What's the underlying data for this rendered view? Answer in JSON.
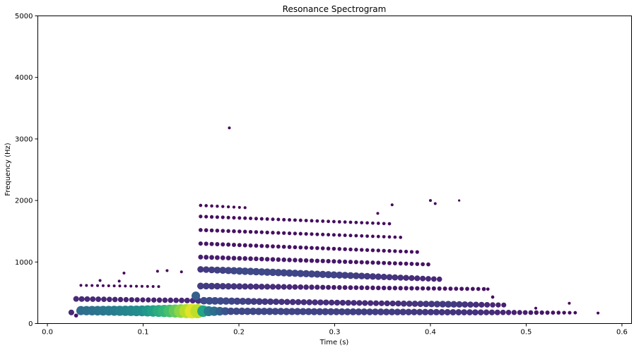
{
  "chart_data": {
    "type": "scatter",
    "title": "Resonance Spectrogram",
    "xlabel": "Time (s)",
    "ylabel": "Frequency (Hz)",
    "xlim": [
      -0.01,
      0.61
    ],
    "ylim": [
      0,
      5000
    ],
    "xticks": [
      0.0,
      0.1,
      0.2,
      0.3,
      0.4,
      0.5,
      0.6
    ],
    "xtick_labels": [
      "0.0",
      "0.1",
      "0.2",
      "0.3",
      "0.4",
      "0.5",
      "0.6"
    ],
    "yticks": [
      0,
      1000,
      2000,
      3000,
      4000,
      5000
    ],
    "ytick_labels": [
      "0",
      "1000",
      "2000",
      "3000",
      "4000",
      "5000"
    ],
    "grid": false,
    "colormap": "viridis",
    "note_encoding": "marker size and color both encode amplitude (0..1)",
    "tracks": [
      {
        "t_start": 0.035,
        "t_end": 0.555,
        "f_start": 210,
        "f_end": 175,
        "amp_keys": [
          [
            0.035,
            0.35
          ],
          [
            0.06,
            0.4
          ],
          [
            0.1,
            0.5
          ],
          [
            0.13,
            0.72
          ],
          [
            0.155,
            1.0
          ],
          [
            0.165,
            0.45
          ],
          [
            0.19,
            0.22
          ],
          [
            0.35,
            0.18
          ],
          [
            0.45,
            0.14
          ],
          [
            0.5,
            0.08
          ],
          [
            0.555,
            0.03
          ]
        ]
      },
      {
        "t_start": 0.03,
        "t_end": 0.48,
        "f_start": 400,
        "f_end": 300,
        "amp_keys": [
          [
            0.03,
            0.12
          ],
          [
            0.1,
            0.09
          ],
          [
            0.155,
            0.12
          ],
          [
            0.165,
            0.24
          ],
          [
            0.25,
            0.14
          ],
          [
            0.35,
            0.12
          ],
          [
            0.42,
            0.18
          ],
          [
            0.48,
            0.08
          ]
        ]
      },
      {
        "t_start": 0.16,
        "t_end": 0.46,
        "f_start": 610,
        "f_end": 560,
        "amp_keys": [
          [
            0.16,
            0.18
          ],
          [
            0.3,
            0.08
          ],
          [
            0.46,
            0.05
          ]
        ]
      },
      {
        "t_start": 0.16,
        "t_end": 0.41,
        "f_start": 880,
        "f_end": 720,
        "amp_keys": [
          [
            0.16,
            0.16
          ],
          [
            0.2,
            0.22
          ],
          [
            0.3,
            0.2
          ],
          [
            0.41,
            0.1
          ]
        ]
      },
      {
        "t_start": 0.16,
        "t_end": 0.4,
        "f_start": 1080,
        "f_end": 960,
        "amp_keys": [
          [
            0.16,
            0.08
          ],
          [
            0.4,
            0.05
          ]
        ]
      },
      {
        "t_start": 0.16,
        "t_end": 0.39,
        "f_start": 1300,
        "f_end": 1160,
        "amp_keys": [
          [
            0.16,
            0.06
          ],
          [
            0.39,
            0.04
          ]
        ]
      },
      {
        "t_start": 0.16,
        "t_end": 0.37,
        "f_start": 1520,
        "f_end": 1400,
        "amp_keys": [
          [
            0.16,
            0.05
          ],
          [
            0.37,
            0.03
          ]
        ]
      },
      {
        "t_start": 0.16,
        "t_end": 0.36,
        "f_start": 1740,
        "f_end": 1620,
        "amp_keys": [
          [
            0.16,
            0.04
          ],
          [
            0.36,
            0.03
          ]
        ]
      },
      {
        "t_start": 0.16,
        "t_end": 0.21,
        "f_start": 1920,
        "f_end": 1880,
        "amp_keys": [
          [
            0.16,
            0.03
          ],
          [
            0.21,
            0.02
          ]
        ]
      },
      {
        "t_start": 0.035,
        "t_end": 0.12,
        "f_start": 620,
        "f_end": 600,
        "amp_keys": [
          [
            0.035,
            0.02
          ],
          [
            0.12,
            0.02
          ]
        ]
      }
    ],
    "scattered_points": [
      {
        "t": 0.19,
        "f": 3180,
        "amp": 0.02
      },
      {
        "t": 0.4,
        "f": 2000,
        "amp": 0.02
      },
      {
        "t": 0.405,
        "f": 1950,
        "amp": 0.02
      },
      {
        "t": 0.43,
        "f": 2000,
        "amp": 0.01
      },
      {
        "t": 0.36,
        "f": 1930,
        "amp": 0.02
      },
      {
        "t": 0.345,
        "f": 1790,
        "amp": 0.02
      },
      {
        "t": 0.08,
        "f": 820,
        "amp": 0.02
      },
      {
        "t": 0.115,
        "f": 850,
        "amp": 0.02
      },
      {
        "t": 0.125,
        "f": 860,
        "amp": 0.02
      },
      {
        "t": 0.14,
        "f": 840,
        "amp": 0.02
      },
      {
        "t": 0.055,
        "f": 700,
        "amp": 0.02
      },
      {
        "t": 0.075,
        "f": 690,
        "amp": 0.02
      },
      {
        "t": 0.46,
        "f": 560,
        "amp": 0.03
      },
      {
        "t": 0.465,
        "f": 430,
        "amp": 0.03
      },
      {
        "t": 0.51,
        "f": 250,
        "amp": 0.02
      },
      {
        "t": 0.545,
        "f": 330,
        "amp": 0.02
      },
      {
        "t": 0.575,
        "f": 170,
        "amp": 0.02
      },
      {
        "t": 0.025,
        "f": 180,
        "amp": 0.12
      },
      {
        "t": 0.03,
        "f": 130,
        "amp": 0.05
      },
      {
        "t": 0.155,
        "f": 450,
        "amp": 0.3
      }
    ]
  }
}
